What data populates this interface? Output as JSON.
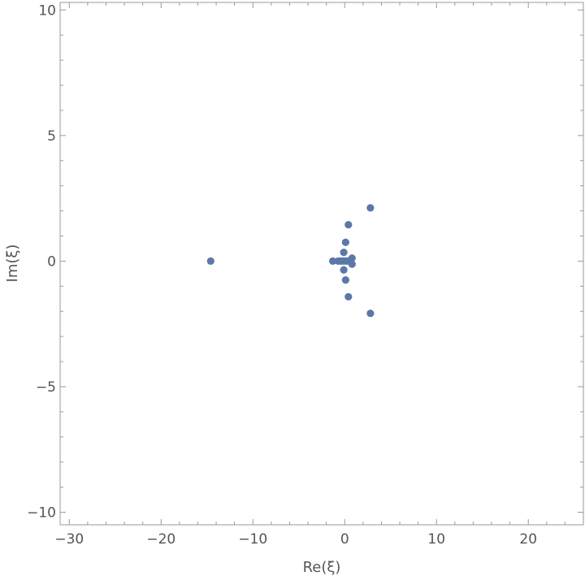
{
  "chart_data": {
    "type": "scatter",
    "title": "",
    "xlabel": "Re(ξ)",
    "ylabel": "Im(ξ)",
    "xlim": [
      -31,
      26
    ],
    "ylim": [
      -10.5,
      10.3
    ],
    "xticks": [
      -30,
      -20,
      -10,
      0,
      10,
      20
    ],
    "yticks": [
      -10,
      -5,
      0,
      5,
      10
    ],
    "xtick_labels": [
      "−30",
      "−20",
      "−10",
      "0",
      "10",
      "20"
    ],
    "ytick_labels": [
      "−10",
      "−5",
      "0",
      "5",
      "10"
    ],
    "grid": false,
    "frame": true,
    "point_color": "#5b78a8",
    "series": [
      {
        "points": [
          {
            "x": -14.6,
            "y": 0.0
          },
          {
            "x": -1.3,
            "y": 0.0
          },
          {
            "x": -0.7,
            "y": 0.0
          },
          {
            "x": -0.4,
            "y": 0.0
          },
          {
            "x": -0.1,
            "y": 0.0
          },
          {
            "x": 0.2,
            "y": 0.0
          },
          {
            "x": 0.5,
            "y": 0.0
          },
          {
            "x": -0.1,
            "y": 0.35
          },
          {
            "x": -0.1,
            "y": -0.35
          },
          {
            "x": 0.1,
            "y": 0.75
          },
          {
            "x": 0.1,
            "y": -0.75
          },
          {
            "x": 0.4,
            "y": 1.45
          },
          {
            "x": 0.4,
            "y": -1.42
          },
          {
            "x": 0.8,
            "y": 0.12
          },
          {
            "x": 0.8,
            "y": -0.12
          },
          {
            "x": 2.8,
            "y": 2.12
          },
          {
            "x": 2.8,
            "y": -2.08
          }
        ]
      }
    ]
  }
}
